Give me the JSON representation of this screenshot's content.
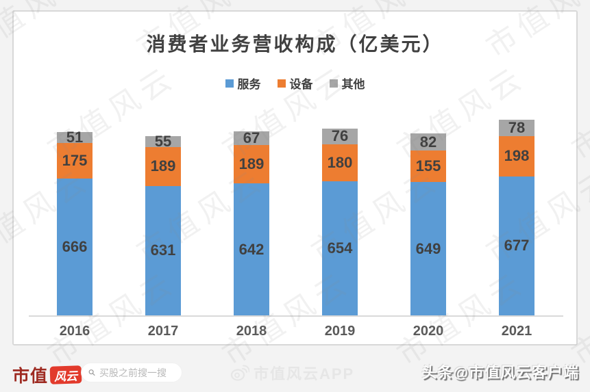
{
  "chart_data": {
    "type": "bar",
    "stacked": true,
    "title": "消费者业务营收构成（亿美元）",
    "categories": [
      "2016",
      "2017",
      "2018",
      "2019",
      "2020",
      "2021"
    ],
    "series": [
      {
        "name": "服务",
        "color": "#5b9bd5",
        "values": [
          666,
          631,
          642,
          654,
          649,
          677
        ]
      },
      {
        "name": "设备",
        "color": "#ed7d31",
        "values": [
          175,
          189,
          189,
          180,
          155,
          198
        ]
      },
      {
        "name": "其他",
        "color": "#a6a6a6",
        "values": [
          51,
          55,
          67,
          76,
          82,
          78
        ]
      }
    ],
    "legend_position": "top",
    "grid": false,
    "data_labels": true,
    "unit": "亿美元"
  },
  "watermark": {
    "text": "市值风云"
  },
  "footer": {
    "brand_prefix": "市值",
    "brand_badge": "风云",
    "search_placeholder": "买股之前搜一搜",
    "center_text": "市值风云APP",
    "right_text": "头条@市值风云客户端"
  },
  "colors": {
    "series_blue": "#5b9bd5",
    "series_orange": "#ed7d31",
    "series_gray": "#a6a6a6",
    "brand_red": "#e23a2c",
    "brand_dark_red": "#9e2b22",
    "axis_line": "#d9d9d9",
    "label_text": "#404040"
  }
}
